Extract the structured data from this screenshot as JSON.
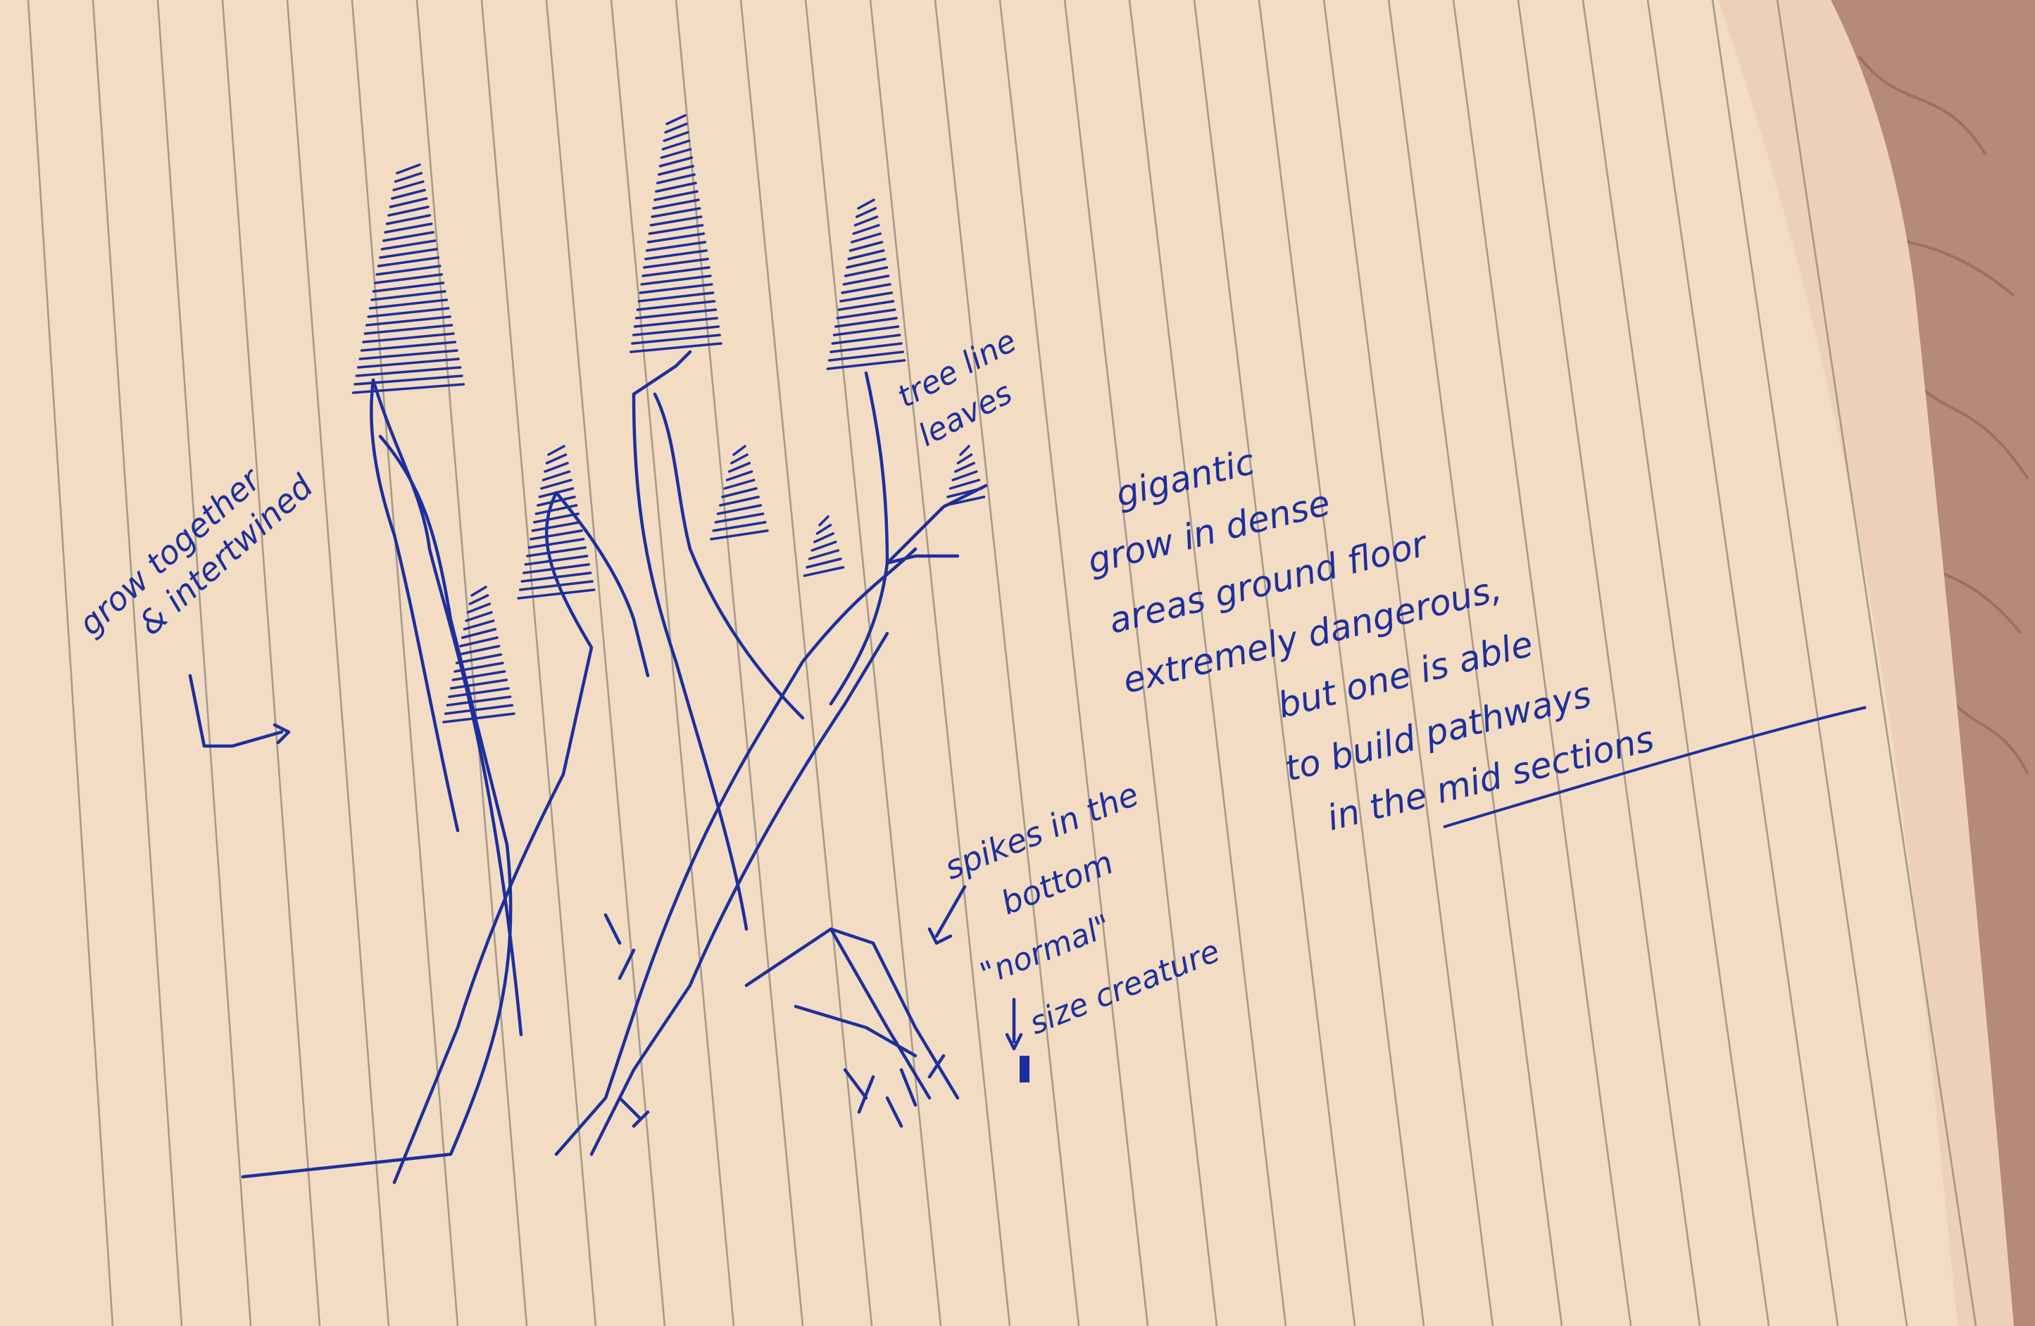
{
  "colors": {
    "paper": "#f3dcc4",
    "paper_shadow": "#e6c9ae",
    "ruling": "#8e8478",
    "ink": "#1c2f9c",
    "table": "#b58a7a",
    "table_dark": "#8f5f52"
  },
  "notes": {
    "grow_together": "grow together",
    "intertwined": "& intertwined",
    "tree_line": "tree line",
    "leaves": "leaves",
    "gigantic": "gigantic",
    "grow_in_dense": "grow in dense",
    "areas_ground_floor": "areas ground floor",
    "extremely_dangerous": "extremely dangerous,",
    "but_one_is_able": "but one is able",
    "to_build_pathways": "to build pathways",
    "in_the_mid_sections": "in the mid sections",
    "spikes_in_the": "spikes in the",
    "bottom": "bottom",
    "normal": "\"normal\"",
    "size_creature": "size creature"
  }
}
